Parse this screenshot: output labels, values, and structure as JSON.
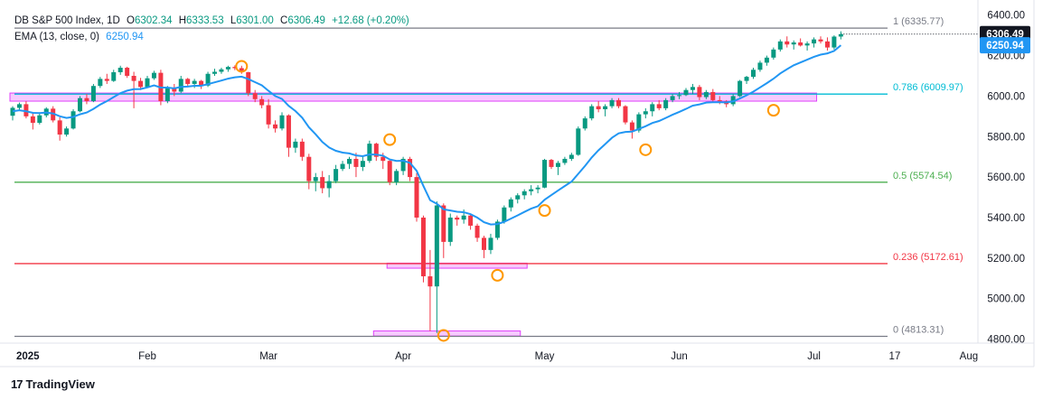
{
  "header": {
    "symbol": "DB S&P 500 Index, 1D",
    "o_label": "O",
    "o": "6302.34",
    "h_label": "H",
    "h": "6333.53",
    "l_label": "L",
    "l": "6301.00",
    "c_label": "C",
    "c": "6306.49",
    "change": "+12.68 (+0.20%)",
    "ema_label": "EMA (13, close, 0)",
    "ema_value": "6250.94"
  },
  "brand": {
    "logo": "17",
    "name": "TradingView"
  },
  "colors": {
    "up": "#089981",
    "down": "#f23645",
    "ema": "#2196f3",
    "pink": "#e040fb",
    "orange": "#ff9800"
  },
  "chart_data": {
    "type": "candlestick",
    "ylim": [
      4780,
      6430
    ],
    "y_ticks": [
      6400,
      6200,
      6000,
      5800,
      5600,
      5400,
      5200,
      5000,
      4800
    ],
    "y_tick_labels": [
      "6400.00",
      "6200.00",
      "6000.00",
      "5800.00",
      "5600.00",
      "5400.00",
      "5200.00",
      "5000.00",
      "4800.00"
    ],
    "x_labels": [
      {
        "label": "2025",
        "index": 0,
        "bold": true
      },
      {
        "label": "Feb",
        "index": 20
      },
      {
        "label": "Mar",
        "index": 38
      },
      {
        "label": "Apr",
        "index": 58
      },
      {
        "label": "May",
        "index": 79
      },
      {
        "label": "Jun",
        "index": 99
      },
      {
        "label": "Jul",
        "index": 119
      },
      {
        "label": "17",
        "index": 131
      },
      {
        "label": "Aug",
        "index": 142
      }
    ],
    "x_count": 147,
    "fib_levels": [
      {
        "label": "1 (6335.77)",
        "value": 6335.77,
        "color": "#787b86"
      },
      {
        "label": "0.786 (6009.97)",
        "value": 6009.97,
        "color": "#00bcd4"
      },
      {
        "label": "0.5 (5574.54)",
        "value": 5574.54,
        "color": "#4caf50"
      },
      {
        "label": "0.236 (5172.61)",
        "value": 5172.61,
        "color": "#f23645"
      },
      {
        "label": "0 (4813.31)",
        "value": 4813.31,
        "color": "#787b86"
      }
    ],
    "current_price": {
      "value": 6306.49,
      "label": "6306.49"
    },
    "ema_price": {
      "value": 6250.94,
      "label": "6250.94"
    },
    "zones": [
      {
        "from": 0,
        "to": 119,
        "low": 5975,
        "high": 6015
      },
      {
        "from": 56,
        "to": 76,
        "low": 5150,
        "high": 5175
      },
      {
        "from": 54,
        "to": 75,
        "low": 4815,
        "high": 4840
      }
    ],
    "circles": [
      {
        "index": 34,
        "value": 6147
      },
      {
        "index": 56,
        "value": 5785
      },
      {
        "index": 64,
        "value": 4818
      },
      {
        "index": 72,
        "value": 5115
      },
      {
        "index": 79,
        "value": 5435
      },
      {
        "index": 94,
        "value": 5735
      },
      {
        "index": 113,
        "value": 5930
      }
    ],
    "candles": [
      [
        5903,
        5950,
        5880,
        5942
      ],
      [
        5942,
        5968,
        5930,
        5960
      ],
      [
        5960,
        5975,
        5890,
        5900
      ],
      [
        5900,
        5915,
        5835,
        5868
      ],
      [
        5868,
        5920,
        5860,
        5905
      ],
      [
        5905,
        5945,
        5895,
        5938
      ],
      [
        5938,
        5950,
        5870,
        5880
      ],
      [
        5880,
        5895,
        5780,
        5810
      ],
      [
        5810,
        5850,
        5800,
        5840
      ],
      [
        5840,
        5935,
        5835,
        5925
      ],
      [
        5925,
        6000,
        5920,
        5990
      ],
      [
        5990,
        6010,
        5960,
        5975
      ],
      [
        5975,
        6060,
        5970,
        6050
      ],
      [
        6050,
        6095,
        6040,
        6085
      ],
      [
        6085,
        6110,
        6060,
        6075
      ],
      [
        6075,
        6130,
        6070,
        6118
      ],
      [
        6118,
        6150,
        6105,
        6140
      ],
      [
        6140,
        6145,
        6090,
        6100
      ],
      [
        6100,
        6120,
        5940,
        6075
      ],
      [
        6075,
        6090,
        6030,
        6045
      ],
      [
        6045,
        6100,
        6040,
        6088
      ],
      [
        6088,
        6125,
        6080,
        6115
      ],
      [
        6115,
        6130,
        5955,
        5975
      ],
      [
        5975,
        6050,
        5965,
        6040
      ],
      [
        6040,
        6060,
        6000,
        6022
      ],
      [
        6022,
        6100,
        6015,
        6085
      ],
      [
        6085,
        6090,
        6050,
        6060
      ],
      [
        6060,
        6085,
        6040,
        6075
      ],
      [
        6075,
        6080,
        6035,
        6052
      ],
      [
        6052,
        6120,
        6045,
        6110
      ],
      [
        6110,
        6135,
        6100,
        6120
      ],
      [
        6120,
        6140,
        6110,
        6132
      ],
      [
        6132,
        6150,
        6120,
        6144
      ],
      [
        6144,
        6152,
        6128,
        6138
      ],
      [
        6138,
        6150,
        6110,
        6118
      ],
      [
        6118,
        6120,
        6000,
        6014
      ],
      [
        6014,
        6030,
        5970,
        5985
      ],
      [
        5985,
        6000,
        5940,
        5955
      ],
      [
        5955,
        5985,
        5840,
        5860
      ],
      [
        5860,
        5880,
        5820,
        5840
      ],
      [
        5840,
        5920,
        5830,
        5905
      ],
      [
        5905,
        5910,
        5700,
        5745
      ],
      [
        5745,
        5790,
        5720,
        5775
      ],
      [
        5775,
        5790,
        5680,
        5700
      ],
      [
        5700,
        5715,
        5540,
        5580
      ],
      [
        5580,
        5620,
        5530,
        5600
      ],
      [
        5600,
        5630,
        5520,
        5545
      ],
      [
        5545,
        5610,
        5500,
        5580
      ],
      [
        5580,
        5660,
        5570,
        5640
      ],
      [
        5640,
        5680,
        5630,
        5665
      ],
      [
        5665,
        5700,
        5640,
        5690
      ],
      [
        5690,
        5720,
        5600,
        5650
      ],
      [
        5650,
        5700,
        5630,
        5680
      ],
      [
        5680,
        5780,
        5670,
        5765
      ],
      [
        5765,
        5770,
        5680,
        5700
      ],
      [
        5700,
        5720,
        5640,
        5680
      ],
      [
        5680,
        5690,
        5560,
        5575
      ],
      [
        5575,
        5640,
        5560,
        5630
      ],
      [
        5630,
        5700,
        5610,
        5690
      ],
      [
        5690,
        5700,
        5580,
        5600
      ],
      [
        5600,
        5620,
        5380,
        5400
      ],
      [
        5400,
        5410,
        5080,
        5110
      ],
      [
        5110,
        5240,
        4840,
        5060
      ],
      [
        5060,
        5480,
        4830,
        5460
      ],
      [
        5460,
        5470,
        5200,
        5280
      ],
      [
        5280,
        5420,
        5260,
        5400
      ],
      [
        5400,
        5410,
        5360,
        5390
      ],
      [
        5390,
        5440,
        5370,
        5410
      ],
      [
        5410,
        5420,
        5340,
        5360
      ],
      [
        5360,
        5370,
        5280,
        5300
      ],
      [
        5300,
        5310,
        5200,
        5240
      ],
      [
        5240,
        5320,
        5220,
        5300
      ],
      [
        5300,
        5390,
        5290,
        5380
      ],
      [
        5380,
        5460,
        5370,
        5450
      ],
      [
        5450,
        5500,
        5430,
        5490
      ],
      [
        5490,
        5520,
        5470,
        5510
      ],
      [
        5510,
        5540,
        5490,
        5530
      ],
      [
        5530,
        5560,
        5510,
        5540
      ],
      [
        5540,
        5560,
        5520,
        5548
      ],
      [
        5548,
        5690,
        5545,
        5685
      ],
      [
        5685,
        5690,
        5640,
        5650
      ],
      [
        5650,
        5680,
        5610,
        5670
      ],
      [
        5670,
        5700,
        5660,
        5690
      ],
      [
        5690,
        5720,
        5680,
        5710
      ],
      [
        5710,
        5850,
        5705,
        5840
      ],
      [
        5840,
        5900,
        5830,
        5890
      ],
      [
        5890,
        5960,
        5880,
        5950
      ],
      [
        5950,
        5975,
        5920,
        5935
      ],
      [
        5935,
        5960,
        5900,
        5950
      ],
      [
        5950,
        5990,
        5940,
        5980
      ],
      [
        5980,
        5990,
        5940,
        5950
      ],
      [
        5950,
        5955,
        5860,
        5870
      ],
      [
        5870,
        5880,
        5790,
        5830
      ],
      [
        5830,
        5920,
        5820,
        5910
      ],
      [
        5910,
        5940,
        5890,
        5925
      ],
      [
        5925,
        5970,
        5900,
        5960
      ],
      [
        5960,
        5980,
        5930,
        5940
      ],
      [
        5940,
        5990,
        5930,
        5980
      ],
      [
        5980,
        6010,
        5970,
        6000
      ],
      [
        6000,
        6020,
        5985,
        6005
      ],
      [
        6005,
        6040,
        6000,
        6030
      ],
      [
        6030,
        6060,
        6010,
        6045
      ],
      [
        6045,
        6055,
        5980,
        5995
      ],
      [
        5995,
        6030,
        5985,
        6020
      ],
      [
        6020,
        6035,
        5970,
        5980
      ],
      [
        5980,
        6000,
        5960,
        5975
      ],
      [
        5975,
        5980,
        5945,
        5960
      ],
      [
        5960,
        6010,
        5950,
        6000
      ],
      [
        6000,
        6080,
        5995,
        6075
      ],
      [
        6075,
        6100,
        6060,
        6095
      ],
      [
        6095,
        6140,
        6085,
        6130
      ],
      [
        6130,
        6175,
        6120,
        6165
      ],
      [
        6165,
        6200,
        6150,
        6190
      ],
      [
        6190,
        6240,
        6180,
        6230
      ],
      [
        6230,
        6280,
        6220,
        6270
      ],
      [
        6270,
        6295,
        6240,
        6255
      ],
      [
        6255,
        6275,
        6230,
        6265
      ],
      [
        6265,
        6285,
        6245,
        6250
      ],
      [
        6250,
        6270,
        6225,
        6260
      ],
      [
        6260,
        6290,
        6240,
        6280
      ],
      [
        6280,
        6295,
        6260,
        6270
      ],
      [
        6270,
        6290,
        6225,
        6240
      ],
      [
        6240,
        6300,
        6230,
        6294
      ],
      [
        6294,
        6320,
        6280,
        6306
      ]
    ],
    "ema": [
      5925,
      5930,
      5925,
      5917,
      5916,
      5919,
      5914,
      5900,
      5892,
      5897,
      5910,
      5919,
      5937,
      5958,
      5975,
      5995,
      6015,
      6027,
      6034,
      6035,
      6043,
      6053,
      6042,
      6042,
      6038,
      6045,
      6047,
      6051,
      6051,
      6059,
      6068,
      6077,
      6086,
      6093,
      6096,
      6084,
      6069,
      6053,
      6026,
      6000,
      5986,
      5952,
      5926,
      5893,
      5846,
      5811,
      5773,
      5746,
      5730,
      5721,
      5717,
      5707,
      5703,
      5712,
      5711,
      5706,
      5687,
      5680,
      5681,
      5670,
      5631,
      5557,
      5486,
      5468,
      5441,
      5435,
      5429,
      5426,
      5417,
      5400,
      5377,
      5366,
      5368,
      5379,
      5395,
      5411,
      5428,
      5444,
      5456,
      5488,
      5511,
      5534,
      5556,
      5578,
      5616,
      5655,
      5697,
      5732,
      5763,
      5794,
      5816,
      5823,
      5825,
      5838,
      5851,
      5867,
      5877,
      5892,
      5908,
      5922,
      5937,
      5953,
      5959,
      5968,
      5970,
      5970,
      5969,
      5974,
      5988,
      6004,
      6022,
      6043,
      6064,
      6086,
      6112,
      6133,
      6152,
      6166,
      6180,
      6194,
      6205,
      6211,
      6223,
      6251
    ]
  }
}
